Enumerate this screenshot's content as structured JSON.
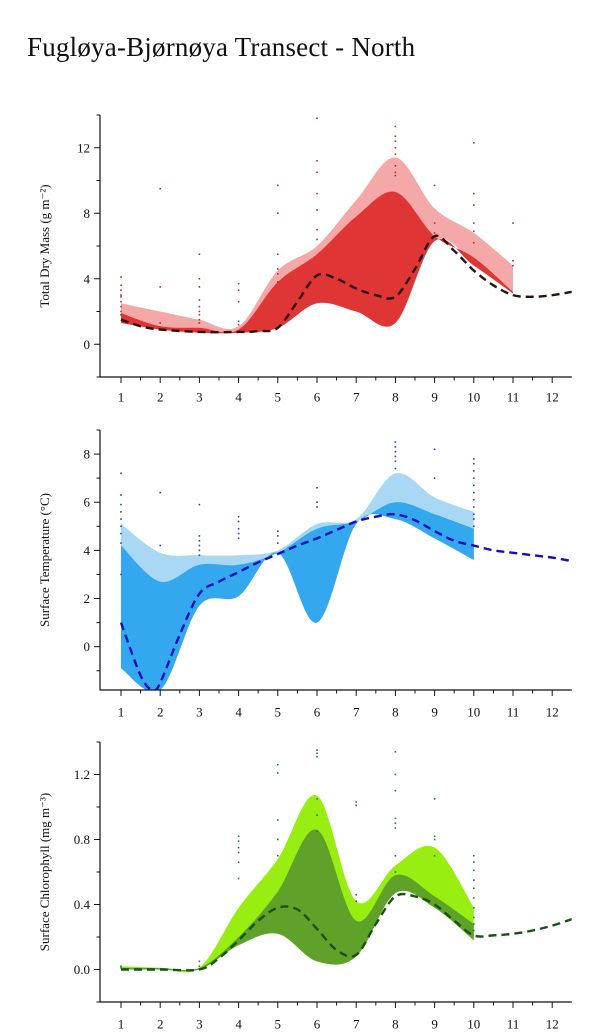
{
  "title": "Fugløya-Bjørnøya Transect - North",
  "chart_data": [
    {
      "type": "area",
      "ylabel": "Total Dry Mass (g m⁻²)",
      "ylim": [
        -2,
        14
      ],
      "xlim": [
        0.5,
        12.5
      ],
      "yticks": [
        "0",
        "4",
        "8",
        "12"
      ],
      "ytick_values": [
        0,
        4,
        8,
        12
      ],
      "xticks": [
        "1",
        "2",
        "3",
        "4",
        "5",
        "6",
        "7",
        "8",
        "9",
        "10",
        "11",
        "12"
      ],
      "colors": {
        "outer": "#f4a8a8",
        "inner": "#e03535",
        "line": "#2b1111",
        "dots": "#a83232"
      },
      "x": [
        1,
        2,
        3,
        4,
        5,
        6,
        7,
        8,
        9,
        10,
        11
      ],
      "outer_upper": [
        2.5,
        2.0,
        1.5,
        1.1,
        4.5,
        6.0,
        8.8,
        11.4,
        8.3,
        6.8,
        4.8
      ],
      "outer_lower": [
        1.3,
        0.9,
        0.7,
        0.7,
        1.0,
        2.5,
        2.0,
        1.3,
        6.3,
        5.0,
        3.1
      ],
      "inner_upper": [
        1.9,
        1.1,
        1.0,
        0.9,
        3.8,
        5.5,
        7.8,
        9.3,
        6.6,
        5.3,
        3.2
      ],
      "inner_lower": [
        1.3,
        0.9,
        0.7,
        0.7,
        1.0,
        2.5,
        2.0,
        1.3,
        6.3,
        4.8,
        3.1
      ],
      "series": [
        {
          "x": [
            1,
            1.5,
            2,
            3,
            4,
            4.5,
            5,
            5.5,
            6,
            6.5,
            7,
            7.5,
            8,
            8.5,
            9,
            9.5,
            10,
            10.5,
            11,
            11.5,
            12,
            12.5
          ],
          "values": [
            1.5,
            1.1,
            0.9,
            0.75,
            0.75,
            0.8,
            1.0,
            2.6,
            4.2,
            4.0,
            3.4,
            3.0,
            2.9,
            4.6,
            6.6,
            5.7,
            4.5,
            3.6,
            3.0,
            2.9,
            3.0,
            3.2
          ]
        }
      ],
      "points": [
        [
          1,
          4.1
        ],
        [
          1,
          3.6
        ],
        [
          1,
          3.3
        ],
        [
          1,
          3.0
        ],
        [
          1,
          2.9
        ],
        [
          1,
          2.6
        ],
        [
          1,
          2.3
        ],
        [
          1,
          2.0
        ],
        [
          1,
          1.8
        ],
        [
          2,
          9.5
        ],
        [
          2,
          3.5
        ],
        [
          2,
          1.3
        ],
        [
          3,
          5.5
        ],
        [
          3,
          4.0
        ],
        [
          3,
          3.5
        ],
        [
          3,
          2.7
        ],
        [
          3,
          2.3
        ],
        [
          3,
          2.0
        ],
        [
          3,
          1.8
        ],
        [
          3,
          1.5
        ],
        [
          3,
          1.3
        ],
        [
          4,
          3.7
        ],
        [
          4,
          3.3
        ],
        [
          4,
          2.6
        ],
        [
          4,
          1.4
        ],
        [
          4,
          1.2
        ],
        [
          5,
          9.7
        ],
        [
          5,
          8.0
        ],
        [
          5,
          5.5
        ],
        [
          5,
          4.6
        ],
        [
          5,
          4.3
        ],
        [
          5,
          3.8
        ],
        [
          6,
          13.8
        ],
        [
          6,
          11.2
        ],
        [
          6,
          10.5
        ],
        [
          6,
          9.2
        ],
        [
          6,
          8.2
        ],
        [
          6,
          7.0
        ],
        [
          6,
          6.4
        ],
        [
          8,
          13.3
        ],
        [
          8,
          12.7
        ],
        [
          8,
          12.4
        ],
        [
          8,
          12.0
        ],
        [
          8,
          11.6
        ],
        [
          8,
          10.9
        ],
        [
          8,
          10.5
        ],
        [
          8,
          10.3
        ],
        [
          9,
          9.7
        ],
        [
          9,
          7.4
        ],
        [
          9,
          6.8
        ],
        [
          10,
          12.3
        ],
        [
          10,
          9.2
        ],
        [
          10,
          8.5
        ],
        [
          10,
          7.4
        ],
        [
          10,
          6.9
        ],
        [
          10,
          6.2
        ],
        [
          11,
          7.4
        ],
        [
          11,
          5.1
        ],
        [
          11,
          4.8
        ]
      ]
    },
    {
      "type": "area",
      "ylabel": "Surface Temperature (°C)",
      "ylim": [
        -1.8,
        9
      ],
      "xlim": [
        0.5,
        12.5
      ],
      "yticks": [
        "0",
        "2",
        "4",
        "6",
        "8"
      ],
      "ytick_values": [
        0,
        2,
        4,
        6,
        8
      ],
      "xticks": [
        "1",
        "2",
        "3",
        "4",
        "5",
        "6",
        "7",
        "8",
        "9",
        "10",
        "11",
        "12"
      ],
      "colors": {
        "outer": "#a8d8f4",
        "inner": "#33a8ee",
        "line": "#1010b8",
        "dots": "#2040d8"
      },
      "x": [
        1,
        2,
        3,
        4,
        5,
        6,
        7,
        8,
        9,
        10
      ],
      "outer_upper": [
        5.1,
        3.9,
        3.8,
        3.8,
        4.0,
        5.1,
        5.3,
        7.2,
        6.2,
        5.6
      ],
      "outer_lower": [
        -0.9,
        -1.8,
        1.7,
        2.1,
        3.9,
        1.0,
        5.1,
        5.3,
        4.5,
        3.6
      ],
      "inner_upper": [
        4.2,
        2.7,
        3.4,
        3.4,
        3.9,
        4.9,
        5.2,
        6.0,
        5.5,
        4.9
      ],
      "inner_lower": [
        -0.9,
        -1.8,
        1.7,
        2.1,
        3.9,
        1.0,
        5.1,
        5.3,
        4.5,
        3.6
      ],
      "series": [
        {
          "x": [
            1,
            1.5,
            1.8,
            2,
            2.5,
            3,
            3.5,
            4,
            4.5,
            5,
            5.5,
            6,
            6.5,
            7,
            7.5,
            8,
            8.5,
            9,
            9.5,
            10,
            10.5,
            11,
            11.5,
            12,
            12.5
          ],
          "values": [
            1.0,
            -1.2,
            -1.8,
            -1.5,
            0.5,
            2.2,
            2.7,
            3.1,
            3.5,
            3.85,
            4.2,
            4.5,
            4.85,
            5.2,
            5.4,
            5.5,
            5.25,
            4.8,
            4.4,
            4.2,
            4.0,
            3.9,
            3.8,
            3.7,
            3.55
          ]
        }
      ],
      "points": [
        [
          1,
          7.2
        ],
        [
          1,
          6.3
        ],
        [
          1,
          5.9
        ],
        [
          1,
          5.6
        ],
        [
          1,
          5.3
        ],
        [
          1,
          5.0
        ],
        [
          1,
          4.7
        ],
        [
          1,
          4.3
        ],
        [
          1,
          3.0
        ],
        [
          2,
          6.4
        ],
        [
          2,
          4.2
        ],
        [
          3,
          5.9
        ],
        [
          3,
          4.6
        ],
        [
          3,
          4.4
        ],
        [
          3,
          4.2
        ],
        [
          3,
          4.0
        ],
        [
          3,
          3.8
        ],
        [
          4,
          5.4
        ],
        [
          4,
          5.2
        ],
        [
          4,
          4.9
        ],
        [
          4,
          4.7
        ],
        [
          4,
          4.5
        ],
        [
          5,
          4.8
        ],
        [
          5,
          4.6
        ],
        [
          5,
          4.3
        ],
        [
          6,
          6.6
        ],
        [
          6,
          6.0
        ],
        [
          6,
          5.8
        ],
        [
          8,
          8.5
        ],
        [
          8,
          8.3
        ],
        [
          8,
          8.1
        ],
        [
          8,
          7.9
        ],
        [
          8,
          7.7
        ],
        [
          8,
          7.4
        ],
        [
          9,
          8.2
        ],
        [
          9,
          7.0
        ],
        [
          10,
          7.8
        ],
        [
          10,
          7.6
        ],
        [
          10,
          7.3
        ],
        [
          10,
          7.0
        ],
        [
          10,
          6.7
        ],
        [
          10,
          6.4
        ],
        [
          10,
          6.1
        ],
        [
          10,
          5.8
        ],
        [
          10,
          5.5
        ],
        [
          10,
          5.3
        ],
        [
          10,
          5.0
        ]
      ]
    },
    {
      "type": "area",
      "ylabel": "Surface Chlorophyll (mg m⁻³)",
      "ylim": [
        -0.2,
        1.4
      ],
      "xlim": [
        0.5,
        12.5
      ],
      "yticks": [
        "0.0",
        "0.4",
        "0.8",
        "1.2"
      ],
      "ytick_values": [
        0.0,
        0.4,
        0.8,
        1.2
      ],
      "xticks": [
        "1",
        "2",
        "3",
        "4",
        "5",
        "6",
        "7",
        "8",
        "9",
        "10",
        "11",
        "12"
      ],
      "colors": {
        "outer": "#99ee11",
        "inner": "#5fa22a",
        "line": "#145414",
        "dots": "#1c7a4c"
      },
      "x": [
        1,
        2,
        3,
        4,
        5,
        6,
        7,
        8,
        9,
        10
      ],
      "outer_upper": [
        0.02,
        0.01,
        0.01,
        0.38,
        0.68,
        1.07,
        0.42,
        0.64,
        0.75,
        0.38
      ],
      "outer_lower": [
        0.0,
        0.0,
        0.0,
        0.15,
        0.22,
        0.05,
        0.08,
        0.47,
        0.38,
        0.18
      ],
      "inner_upper": [
        0.01,
        0.01,
        0.01,
        0.2,
        0.48,
        0.86,
        0.3,
        0.58,
        0.45,
        0.28
      ],
      "inner_lower": [
        0.0,
        0.0,
        0.0,
        0.15,
        0.22,
        0.05,
        0.08,
        0.47,
        0.38,
        0.18
      ],
      "series": [
        {
          "x": [
            1,
            2,
            3,
            3.5,
            4,
            4.5,
            5,
            5.5,
            6,
            6.5,
            7,
            7.5,
            8,
            8.5,
            9,
            9.5,
            10,
            10.5,
            11,
            11.5,
            12,
            12.5
          ],
          "values": [
            0.0,
            0.0,
            0.0,
            0.07,
            0.18,
            0.3,
            0.38,
            0.37,
            0.25,
            0.12,
            0.09,
            0.28,
            0.45,
            0.45,
            0.4,
            0.3,
            0.21,
            0.21,
            0.22,
            0.24,
            0.27,
            0.31
          ]
        }
      ],
      "points": [
        [
          1,
          0.02
        ],
        [
          1,
          0.01
        ],
        [
          3,
          0.05
        ],
        [
          3,
          0.02
        ],
        [
          4,
          0.82
        ],
        [
          4,
          0.79
        ],
        [
          4,
          0.75
        ],
        [
          4,
          0.72
        ],
        [
          4,
          0.66
        ],
        [
          4,
          0.56
        ],
        [
          5,
          1.26
        ],
        [
          5,
          1.21
        ],
        [
          5,
          0.92
        ],
        [
          5,
          0.8
        ],
        [
          5,
          0.7
        ],
        [
          6,
          1.35
        ],
        [
          6,
          1.33
        ],
        [
          6,
          1.31
        ],
        [
          6,
          1.05
        ],
        [
          6,
          0.95
        ],
        [
          6,
          0.85
        ],
        [
          7,
          1.03
        ],
        [
          7,
          1.01
        ],
        [
          7,
          0.46
        ],
        [
          7,
          0.42
        ],
        [
          8,
          1.34
        ],
        [
          8,
          1.2
        ],
        [
          8,
          1.1
        ],
        [
          8,
          0.93
        ],
        [
          8,
          0.9
        ],
        [
          8,
          0.87
        ],
        [
          8,
          0.7
        ],
        [
          8,
          0.6
        ],
        [
          9,
          1.05
        ],
        [
          9,
          0.82
        ],
        [
          9,
          0.8
        ],
        [
          9,
          0.7
        ],
        [
          10,
          0.7
        ],
        [
          10,
          0.66
        ],
        [
          10,
          0.61
        ],
        [
          10,
          0.55
        ],
        [
          10,
          0.5
        ],
        [
          10,
          0.44
        ],
        [
          10,
          0.38
        ],
        [
          10,
          0.32
        ],
        [
          10,
          0.28
        ],
        [
          10,
          0.24
        ]
      ]
    }
  ]
}
